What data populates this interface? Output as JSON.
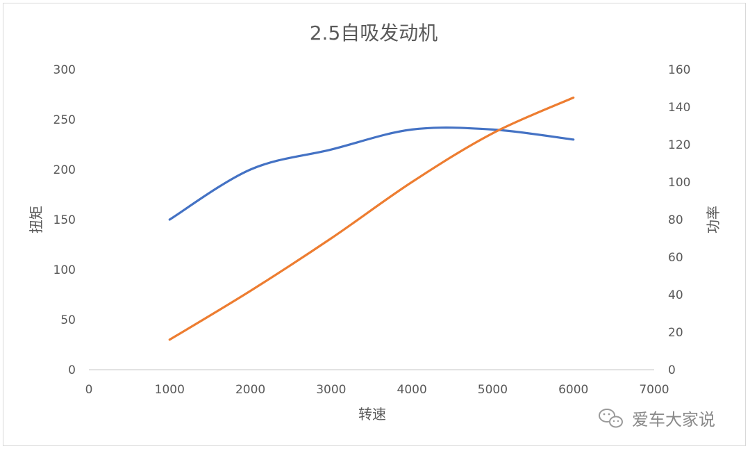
{
  "chart_data": {
    "type": "line",
    "title": "2.5自吸发动机",
    "xlabel": "转速",
    "ylabel_left": "扭矩",
    "ylabel_right": "功率",
    "x_ticks": [
      0,
      1000,
      2000,
      3000,
      4000,
      5000,
      6000,
      7000
    ],
    "y_left_ticks": [
      0,
      50,
      100,
      150,
      200,
      250,
      300
    ],
    "y_right_ticks": [
      0,
      20,
      40,
      60,
      80,
      100,
      120,
      140,
      160
    ],
    "xlim": [
      0,
      7000
    ],
    "ylim_left": [
      0,
      300
    ],
    "ylim_right": [
      0,
      160
    ],
    "grid": false,
    "series": [
      {
        "axis": "left",
        "color": "#4472c4",
        "x": [
          1000,
          2000,
          3000,
          4000,
          5000,
          6000
        ],
        "values": [
          150,
          200,
          220,
          240,
          240,
          230
        ]
      },
      {
        "axis": "right",
        "color": "#ed7d31",
        "x": [
          1000,
          2000,
          3000,
          4000,
          5000,
          6000
        ],
        "values": [
          16,
          42,
          70,
          100,
          126,
          145
        ]
      }
    ]
  },
  "watermark": {
    "text": "爱车大家说",
    "icon": "wechat-icon"
  }
}
